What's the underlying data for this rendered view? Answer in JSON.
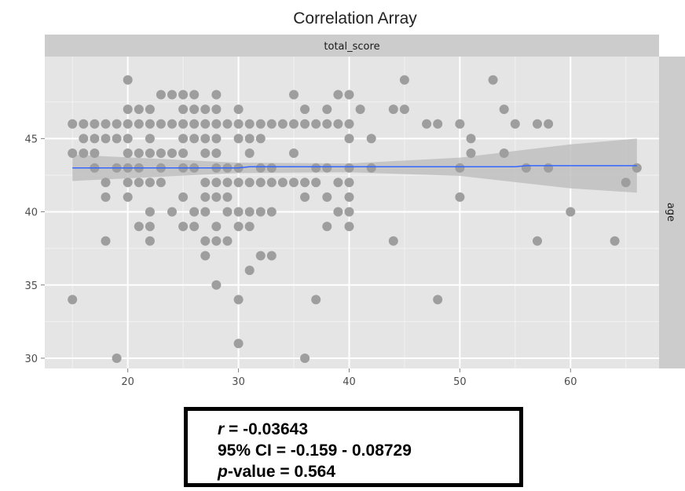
{
  "chart_data": {
    "type": "scatter",
    "title": "Correlation Array",
    "facet_top": "total_score",
    "facet_right": "age",
    "xlim": [
      12.5,
      68
    ],
    "ylim": [
      29.3,
      50.6
    ],
    "x_ticks": [
      20,
      30,
      40,
      50,
      60
    ],
    "y_ticks": [
      30,
      35,
      40,
      45
    ],
    "grid": true,
    "point_color": "#9e9e9e",
    "trend_color": "#3366ff",
    "band_color": "#bdbdbd",
    "panel_color": "#e5e5e5",
    "strip_color": "#cccccc",
    "trend": [
      [
        15,
        43.0
      ],
      [
        30,
        43.0
      ],
      [
        31,
        43.08
      ],
      [
        55,
        43.08
      ],
      [
        56,
        43.15
      ],
      [
        66,
        43.15
      ]
    ],
    "band_upper": [
      [
        15,
        43.9
      ],
      [
        30,
        43.35
      ],
      [
        40,
        43.3
      ],
      [
        50,
        43.7
      ],
      [
        60,
        44.6
      ],
      [
        66,
        45.0
      ]
    ],
    "band_lower": [
      [
        15,
        42.1
      ],
      [
        30,
        42.65
      ],
      [
        40,
        42.7
      ],
      [
        50,
        42.45
      ],
      [
        60,
        41.6
      ],
      [
        66,
        41.3
      ]
    ],
    "points": [
      [
        15,
        46
      ],
      [
        15,
        44
      ],
      [
        15,
        34
      ],
      [
        16,
        46
      ],
      [
        16,
        44
      ],
      [
        16,
        45
      ],
      [
        17,
        46
      ],
      [
        17,
        44
      ],
      [
        17,
        43
      ],
      [
        17,
        45
      ],
      [
        18,
        46
      ],
      [
        18,
        45
      ],
      [
        18,
        42
      ],
      [
        18,
        41
      ],
      [
        18,
        38
      ],
      [
        19,
        46
      ],
      [
        19,
        43
      ],
      [
        19,
        45
      ],
      [
        19,
        30
      ],
      [
        20,
        49
      ],
      [
        20,
        47
      ],
      [
        20,
        46
      ],
      [
        20,
        45
      ],
      [
        20,
        44
      ],
      [
        20,
        43
      ],
      [
        20,
        42
      ],
      [
        20,
        41
      ],
      [
        21,
        47
      ],
      [
        21,
        46
      ],
      [
        21,
        44
      ],
      [
        21,
        43
      ],
      [
        21,
        42
      ],
      [
        21,
        39
      ],
      [
        22,
        47
      ],
      [
        22,
        46
      ],
      [
        22,
        45
      ],
      [
        22,
        44
      ],
      [
        22,
        42
      ],
      [
        22,
        40
      ],
      [
        22,
        39
      ],
      [
        22,
        38
      ],
      [
        23,
        48
      ],
      [
        23,
        46
      ],
      [
        23,
        44
      ],
      [
        23,
        43
      ],
      [
        23,
        42
      ],
      [
        24,
        48
      ],
      [
        24,
        46
      ],
      [
        24,
        44
      ],
      [
        24,
        40
      ],
      [
        25,
        48
      ],
      [
        25,
        47
      ],
      [
        25,
        46
      ],
      [
        25,
        45
      ],
      [
        25,
        44
      ],
      [
        25,
        43
      ],
      [
        25,
        41
      ],
      [
        25,
        39
      ],
      [
        26,
        48
      ],
      [
        26,
        47
      ],
      [
        26,
        46
      ],
      [
        26,
        45
      ],
      [
        26,
        43
      ],
      [
        26,
        40
      ],
      [
        26,
        39
      ],
      [
        27,
        47
      ],
      [
        27,
        46
      ],
      [
        27,
        45
      ],
      [
        27,
        44
      ],
      [
        27,
        42
      ],
      [
        27,
        41
      ],
      [
        27,
        40
      ],
      [
        27,
        38
      ],
      [
        27,
        37
      ],
      [
        28,
        48
      ],
      [
        28,
        47
      ],
      [
        28,
        46
      ],
      [
        28,
        45
      ],
      [
        28,
        44
      ],
      [
        28,
        43
      ],
      [
        28,
        42
      ],
      [
        28,
        41
      ],
      [
        28,
        39
      ],
      [
        28,
        38
      ],
      [
        28,
        35
      ],
      [
        29,
        46
      ],
      [
        29,
        43
      ],
      [
        29,
        42
      ],
      [
        29,
        41
      ],
      [
        29,
        40
      ],
      [
        29,
        38
      ],
      [
        30,
        47
      ],
      [
        30,
        46
      ],
      [
        30,
        45
      ],
      [
        30,
        43
      ],
      [
        30,
        42
      ],
      [
        30,
        40
      ],
      [
        30,
        39
      ],
      [
        30,
        34
      ],
      [
        30,
        31
      ],
      [
        31,
        46
      ],
      [
        31,
        45
      ],
      [
        31,
        44
      ],
      [
        31,
        42
      ],
      [
        31,
        40
      ],
      [
        31,
        39
      ],
      [
        31,
        36
      ],
      [
        32,
        46
      ],
      [
        32,
        45
      ],
      [
        32,
        43
      ],
      [
        32,
        42
      ],
      [
        32,
        40
      ],
      [
        32,
        37
      ],
      [
        33,
        46
      ],
      [
        33,
        43
      ],
      [
        33,
        42
      ],
      [
        33,
        40
      ],
      [
        33,
        37
      ],
      [
        34,
        46
      ],
      [
        34,
        42
      ],
      [
        35,
        48
      ],
      [
        35,
        46
      ],
      [
        35,
        44
      ],
      [
        35,
        42
      ],
      [
        36,
        47
      ],
      [
        36,
        46
      ],
      [
        36,
        42
      ],
      [
        36,
        41
      ],
      [
        36,
        30
      ],
      [
        37,
        46
      ],
      [
        37,
        42
      ],
      [
        37,
        43
      ],
      [
        37,
        34
      ],
      [
        38,
        47
      ],
      [
        38,
        46
      ],
      [
        38,
        43
      ],
      [
        38,
        41
      ],
      [
        38,
        39
      ],
      [
        39,
        48
      ],
      [
        39,
        46
      ],
      [
        39,
        42
      ],
      [
        39,
        40
      ],
      [
        40,
        48
      ],
      [
        40,
        46
      ],
      [
        40,
        45
      ],
      [
        40,
        43
      ],
      [
        40,
        42
      ],
      [
        40,
        41
      ],
      [
        40,
        40
      ],
      [
        40,
        39
      ],
      [
        41,
        47
      ],
      [
        42,
        45
      ],
      [
        42,
        43
      ],
      [
        44,
        47
      ],
      [
        44,
        38
      ],
      [
        45,
        49
      ],
      [
        45,
        47
      ],
      [
        47,
        46
      ],
      [
        48,
        46
      ],
      [
        48,
        34
      ],
      [
        50,
        46
      ],
      [
        50,
        43
      ],
      [
        50,
        41
      ],
      [
        51,
        45
      ],
      [
        51,
        44
      ],
      [
        53,
        49
      ],
      [
        54,
        47
      ],
      [
        54,
        44
      ],
      [
        55,
        46
      ],
      [
        56,
        43
      ],
      [
        57,
        46
      ],
      [
        57,
        38
      ],
      [
        58,
        46
      ],
      [
        58,
        43
      ],
      [
        60,
        40
      ],
      [
        64,
        38
      ],
      [
        65,
        42
      ],
      [
        66,
        43
      ]
    ]
  },
  "stats": {
    "r_symbol": "r",
    "r_text": " = -0.03643",
    "ci_text": "95% CI = -0.159 - 0.08729",
    "p_symbol": "p",
    "p_text": "-value = 0.564"
  }
}
